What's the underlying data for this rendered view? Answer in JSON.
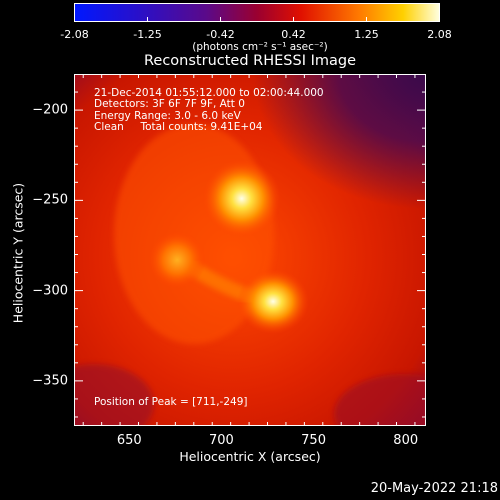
{
  "colorbar": {
    "ticks": [
      "-2.08",
      "-1.25",
      "-0.42",
      "0.42",
      "1.25",
      "2.08"
    ],
    "units": "(photons cm⁻² s⁻¹ asec⁻²)"
  },
  "chart_data": {
    "type": "heatmap",
    "title": "Reconstructed RHESSI Image",
    "xlabel": "Heliocentric X (arcsec)",
    "ylabel": "Heliocentric Y (arcsec)",
    "xlim": [
      620,
      811
    ],
    "ylim": [
      -375,
      -180
    ],
    "xticks": [
      "650",
      "700",
      "750",
      "800"
    ],
    "yticks": [
      "-200",
      "-250",
      "-300",
      "-350"
    ],
    "clim": [
      -2.08,
      2.08
    ],
    "annotations": {
      "time_range": "21-Dec-2014 01:55:12.000 to 02:00:44.000",
      "detectors": "Detectors: 3F 6F 7F 9F, Att 0",
      "energy": "Energy Range: 3.0 - 6.0 keV",
      "method": "Clean     Total counts: 9.41E+04",
      "peak": "Position of Peak = [711,-249]"
    },
    "sources": [
      {
        "x": 711,
        "y": -249,
        "peak": 2.08
      },
      {
        "x": 728,
        "y": -306,
        "peak": 1.85
      },
      {
        "x": 676,
        "y": -283,
        "peak": 1.35
      }
    ]
  },
  "timestamp": "20-May-2022 21:18"
}
